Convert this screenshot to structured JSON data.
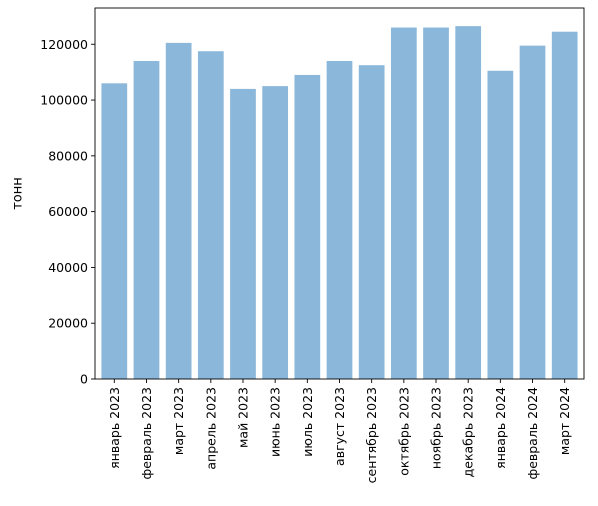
{
  "chart_data": {
    "type": "bar",
    "categories": [
      "январь 2023",
      "февраль 2023",
      "март 2023",
      "апрель 2023",
      "май 2023",
      "июнь 2023",
      "июль 2023",
      "август 2023",
      "сентябрь 2023",
      "октябрь 2023",
      "ноябрь 2023",
      "декабрь 2023",
      "январь 2024",
      "февраль 2024",
      "март 2024"
    ],
    "values": [
      106000,
      114000,
      120500,
      117500,
      104000,
      105000,
      109000,
      114000,
      112500,
      126000,
      126000,
      126500,
      110500,
      119500,
      124500
    ],
    "title": "",
    "xlabel": "",
    "ylabel": "тонн",
    "ylim": [
      0,
      133000
    ],
    "yticks": [
      0,
      20000,
      40000,
      60000,
      80000,
      100000,
      120000
    ],
    "grid": false,
    "bar_color": "#8bb8da"
  }
}
